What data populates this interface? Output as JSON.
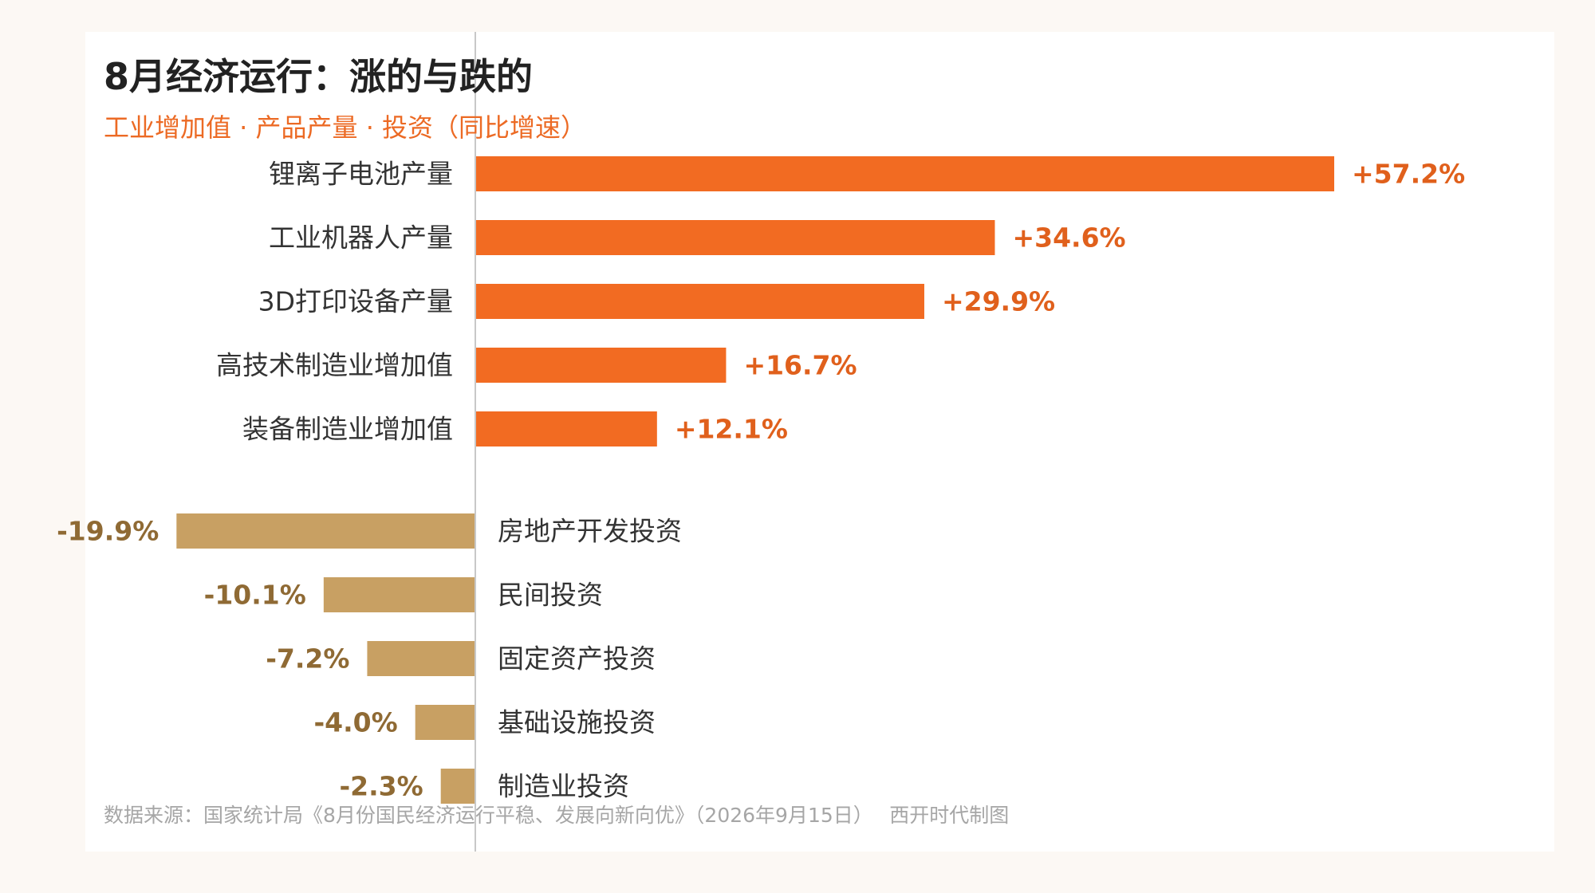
{
  "title": "8月经济运行：涨的与跌的",
  "subtitle": "工业增加值 · 产品产量 · 投资（同比增速）",
  "source": "数据来源：国家统计局《8月份国民经济运行平稳、发展向新向优》（2026年9月15日）　 西开时代制图",
  "colors": {
    "up": "#f26b22",
    "down": "#c8a063",
    "up_text": "#e0601c",
    "down_text": "#8f6a34",
    "axis": "#c8c8c8"
  },
  "chart_data": {
    "type": "bar",
    "orientation": "horizontal",
    "unit": "%",
    "categories": [
      "锂离子电池产量",
      "工业机器人产量",
      "3D打印设备产量",
      "高技术制造业增加值",
      "装备制造业增加值",
      "房地产开发投资",
      "民间投资",
      "固定资产投资",
      "基础设施投资",
      "制造业投资"
    ],
    "values": [
      57.2,
      34.6,
      29.9,
      16.7,
      12.1,
      -19.9,
      -10.1,
      -7.2,
      -4.0,
      -2.3
    ],
    "value_labels": [
      "+57.2%",
      "+34.6%",
      "+29.9%",
      "+16.7%",
      "+12.1%",
      "-19.9%",
      "-10.1%",
      "-7.2%",
      "-4.0%",
      "-2.3%"
    ],
    "groups": [
      {
        "name": "up",
        "count": 5
      },
      {
        "name": "down",
        "count": 5
      }
    ],
    "grid": false
  }
}
